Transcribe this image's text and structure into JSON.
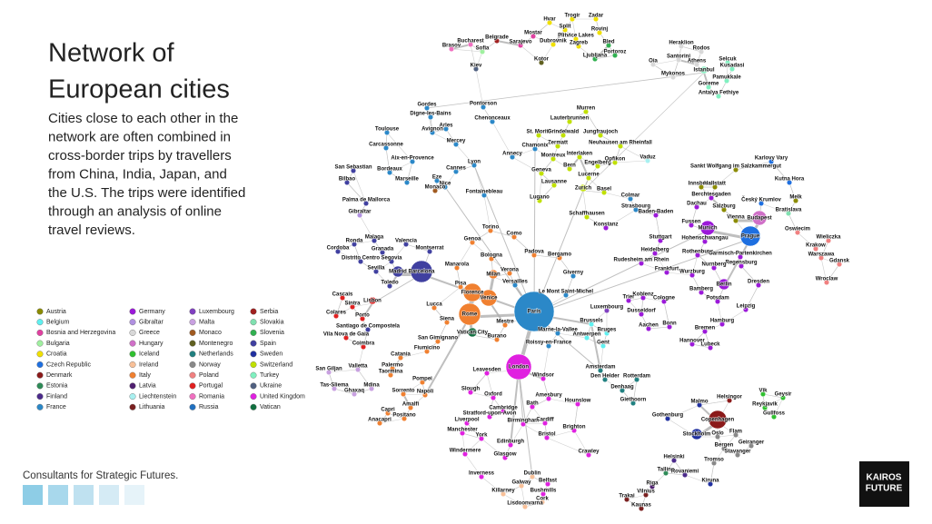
{
  "title_lines": [
    "Network of",
    "European cities"
  ],
  "description_lines": [
    "Cities close to each other in the",
    "network are often combined in",
    "cross-border trips by travellers",
    "from China, India, Japan, and",
    "the U.S. The trips were identified",
    "through an analysis of online",
    "travel reviews."
  ],
  "legend": [
    {
      "name": "Austria",
      "color": "#8b8b00"
    },
    {
      "name": "Belgium",
      "color": "#5ff0f0"
    },
    {
      "name": "Bosnia and Herzegovina",
      "color": "#e040a0"
    },
    {
      "name": "Bulgaria",
      "color": "#a0f0a0"
    },
    {
      "name": "Croatia",
      "color": "#f0e000"
    },
    {
      "name": "Czech Republic",
      "color": "#1e6fe0"
    },
    {
      "name": "Denmark",
      "color": "#8b1a1a"
    },
    {
      "name": "Estonia",
      "color": "#2e8b57"
    },
    {
      "name": "Finland",
      "color": "#4b2a8b"
    },
    {
      "name": "France",
      "color": "#2b88c8"
    },
    {
      "name": "Germany",
      "color": "#9b19d9"
    },
    {
      "name": "Gibraltar",
      "color": "#b090e0"
    },
    {
      "name": "Greece",
      "color": "#d8d8d8"
    },
    {
      "name": "Hungary",
      "color": "#d070c8"
    },
    {
      "name": "Iceland",
      "color": "#30c030"
    },
    {
      "name": "Ireland",
      "color": "#f8c098"
    },
    {
      "name": "Italy",
      "color": "#f08030"
    },
    {
      "name": "Latvia",
      "color": "#502070"
    },
    {
      "name": "Liechtenstein",
      "color": "#a8f0f0"
    },
    {
      "name": "Lithuania",
      "color": "#7a2020"
    },
    {
      "name": "Luxembourg",
      "color": "#8040c0"
    },
    {
      "name": "Malta",
      "color": "#c8a0e0"
    },
    {
      "name": "Monaco",
      "color": "#a05a20"
    },
    {
      "name": "Montenegro",
      "color": "#606020"
    },
    {
      "name": "Netherlands",
      "color": "#208080"
    },
    {
      "name": "Norway",
      "color": "#888888"
    },
    {
      "name": "Poland",
      "color": "#f08080"
    },
    {
      "name": "Portugal",
      "color": "#e02020"
    },
    {
      "name": "Romania",
      "color": "#f070c0"
    },
    {
      "name": "Russia",
      "color": "#2070c0"
    },
    {
      "name": "Serbia",
      "color": "#a02020"
    },
    {
      "name": "Slovakia",
      "color": "#80e0b0"
    },
    {
      "name": "Slovenia",
      "color": "#30b050"
    },
    {
      "name": "Spain",
      "color": "#4040a0"
    },
    {
      "name": "Sweden",
      "color": "#2030a0"
    },
    {
      "name": "Switzerland",
      "color": "#c0e000"
    },
    {
      "name": "Turkey",
      "color": "#80f0c0"
    },
    {
      "name": "Ukraine",
      "color": "#506080"
    },
    {
      "name": "United Kingdom",
      "color": "#e020e0"
    },
    {
      "name": "Vatican",
      "color": "#107040"
    }
  ],
  "nodes": [
    [
      "Trogir",
      "Croatia"
    ],
    [
      "Zadar",
      "Croatia"
    ],
    [
      "Hvar",
      "Croatia"
    ],
    [
      "Split",
      "Croatia"
    ],
    [
      "Rovinj",
      "Croatia"
    ],
    [
      "Mostar",
      "Bosnia and Herzegovina"
    ],
    [
      "Plitvice Lakes",
      "Croatia"
    ],
    [
      "Belgrade",
      "Serbia"
    ],
    [
      "Bucharest",
      "Romania"
    ],
    [
      "Sarajevo",
      "Bosnia and Herzegovina"
    ],
    [
      "Dubrovnik",
      "Croatia"
    ],
    [
      "Zagreb",
      "Croatia"
    ],
    [
      "Bled",
      "Slovenia"
    ],
    [
      "Brasov",
      "Romania"
    ],
    [
      "Sofia",
      "Bulgaria"
    ],
    [
      "Portoroz",
      "Slovenia"
    ],
    [
      "Kotor",
      "Montenegro"
    ],
    [
      "Ljubljana",
      "Slovenia"
    ],
    [
      "Kiev",
      "Ukraine"
    ],
    [
      "Heraklion",
      "Greece"
    ],
    [
      "Rodos",
      "Greece"
    ],
    [
      "Oia",
      "Greece"
    ],
    [
      "Santorini",
      "Greece"
    ],
    [
      "Athens",
      "Greece"
    ],
    [
      "Selcuk",
      "Turkey"
    ],
    [
      "Kusadasi",
      "Turkey"
    ],
    [
      "Istanbul",
      "Turkey"
    ],
    [
      "Mykonos",
      "Greece"
    ],
    [
      "Pamukkale",
      "Turkey"
    ],
    [
      "Goreme",
      "Turkey"
    ],
    [
      "Antalya Fethiye",
      "Turkey"
    ],
    [
      "Gordes",
      "France"
    ],
    [
      "Digne-les-Bains",
      "France"
    ],
    [
      "Pontorson",
      "France"
    ],
    [
      "Chenonceaux",
      "France"
    ],
    [
      "Arles",
      "France"
    ],
    [
      "Avignon",
      "France"
    ],
    [
      "Toulouse",
      "France"
    ],
    [
      "Mercey",
      "France"
    ],
    [
      "Carcassonne",
      "France"
    ],
    [
      "Aix-en-Provence",
      "France"
    ],
    [
      "Lyon",
      "France"
    ],
    [
      "Cannes",
      "France"
    ],
    [
      "San Sebastian",
      "Spain"
    ],
    [
      "Bordeaux",
      "France"
    ],
    [
      "Eze",
      "France"
    ],
    [
      "Marseille",
      "France"
    ],
    [
      "Nice",
      "France"
    ],
    [
      "Bilbao",
      "Spain"
    ],
    [
      "Monaco",
      "Monaco"
    ],
    [
      "Fontainebleau",
      "France"
    ],
    [
      "Murren",
      "Switzerland"
    ],
    [
      "Lauterbrunnen",
      "Switzerland"
    ],
    [
      "St. Moritz",
      "Switzerland"
    ],
    [
      "Grindelwald",
      "Switzerland"
    ],
    [
      "Jungfraujoch",
      "Switzerland"
    ],
    [
      "Zermatt",
      "Switzerland"
    ],
    [
      "Chamonix",
      "France"
    ],
    [
      "Montreux",
      "Switzerland"
    ],
    [
      "Annecy",
      "France"
    ],
    [
      "Interlaken",
      "Switzerland"
    ],
    [
      "Neuhausen am Rheinfall",
      "Switzerland"
    ],
    [
      "Bern",
      "Switzerland"
    ],
    [
      "Engelberg",
      "Switzerland"
    ],
    [
      "Lucerne",
      "Switzerland"
    ],
    [
      "Opfikon",
      "Switzerland"
    ],
    [
      "Vaduz",
      "Liechtenstein"
    ],
    [
      "Geneva",
      "Switzerland"
    ],
    [
      "Lausanne",
      "Switzerland"
    ],
    [
      "Zurich",
      "Switzerland"
    ],
    [
      "Basel",
      "Switzerland"
    ],
    [
      "Lugano",
      "Switzerland"
    ],
    [
      "Palma de Mallorca",
      "Spain"
    ],
    [
      "Gibraltar",
      "Gibraltar"
    ],
    [
      "Ronda",
      "Spain"
    ],
    [
      "Malaga",
      "Spain"
    ],
    [
      "Valencia",
      "Spain"
    ],
    [
      "Cordoba",
      "Spain"
    ],
    [
      "Granada",
      "Spain"
    ],
    [
      "Montserrat",
      "Spain"
    ],
    [
      "Distrito Centro",
      "Spain"
    ],
    [
      "Segovia",
      "Spain"
    ],
    [
      "Sevilla",
      "Spain"
    ],
    [
      "Madrid",
      "Spain"
    ],
    [
      "Barcelona",
      "Spain"
    ],
    [
      "Toledo",
      "Spain"
    ],
    [
      "Cascais",
      "Portugal"
    ],
    [
      "Sintra",
      "Portugal"
    ],
    [
      "Lisbon",
      "Portugal"
    ],
    [
      "Colares",
      "Portugal"
    ],
    [
      "Porto",
      "Portugal"
    ],
    [
      "Santiago de Compostela",
      "Spain"
    ],
    [
      "Vila Nova de Gaia",
      "Portugal"
    ],
    [
      "Coimbra",
      "Portugal"
    ],
    [
      "Torino",
      "Italy"
    ],
    [
      "Como",
      "Italy"
    ],
    [
      "Genoa",
      "Italy"
    ],
    [
      "Padova",
      "Italy"
    ],
    [
      "Bergamo",
      "Italy"
    ],
    [
      "Bologna",
      "Italy"
    ],
    [
      "Manarola",
      "Italy"
    ],
    [
      "Verona",
      "Italy"
    ],
    [
      "Milan",
      "Italy"
    ],
    [
      "Versailles",
      "France"
    ],
    [
      "Pisa",
      "Italy"
    ],
    [
      "Florence",
      "Italy"
    ],
    [
      "Venice",
      "Italy"
    ],
    [
      "Lucca",
      "Italy"
    ],
    [
      "Rome",
      "Italy"
    ],
    [
      "Siena",
      "Italy"
    ],
    [
      "Mestre",
      "Italy"
    ],
    [
      "Vatican City",
      "Vatican"
    ],
    [
      "Burano",
      "Italy"
    ],
    [
      "San Gimignano",
      "Italy"
    ],
    [
      "Fiumicino",
      "Italy"
    ],
    [
      "Catania",
      "Italy"
    ],
    [
      "Valletta",
      "Malta"
    ],
    [
      "San Giljan",
      "Malta"
    ],
    [
      "Palermo",
      "Italy"
    ],
    [
      "Taormina",
      "Italy"
    ],
    [
      "Pompei",
      "Italy"
    ],
    [
      "Mdina",
      "Malta"
    ],
    [
      "Tas-Sliema",
      "Malta"
    ],
    [
      "Ghaxaq",
      "Malta"
    ],
    [
      "Sorrento",
      "Italy"
    ],
    [
      "Napoli",
      "Italy"
    ],
    [
      "Amalfi",
      "Italy"
    ],
    [
      "Capri",
      "Italy"
    ],
    [
      "Positano",
      "Italy"
    ],
    [
      "Anacapri",
      "Italy"
    ],
    [
      "Giverny",
      "France"
    ],
    [
      "Le Mont Saint-Michel",
      "France"
    ],
    [
      "Paris",
      "France"
    ],
    [
      "Marne-la-Vallee",
      "France"
    ],
    [
      "Roissy-en-France",
      "France"
    ],
    [
      "Luxembourg",
      "Luxembourg"
    ],
    [
      "Brussels",
      "Belgium"
    ],
    [
      "Bruges",
      "Belgium"
    ],
    [
      "Antwerpen",
      "Belgium"
    ],
    [
      "Gent",
      "Belgium"
    ],
    [
      "Amsterdam",
      "Netherlands"
    ],
    [
      "Den Helder",
      "Netherlands"
    ],
    [
      "Rotterdam",
      "Netherlands"
    ],
    [
      "Denhaag",
      "Netherlands"
    ],
    [
      "Giethoorn",
      "Netherlands"
    ],
    [
      "London",
      "United Kingdom"
    ],
    [
      "Leavesden",
      "United Kingdom"
    ],
    [
      "Windsor",
      "United Kingdom"
    ],
    [
      "Slough",
      "United Kingdom"
    ],
    [
      "Oxford",
      "United Kingdom"
    ],
    [
      "Amesbury",
      "United Kingdom"
    ],
    [
      "Bath",
      "United Kingdom"
    ],
    [
      "Hounslow",
      "United Kingdom"
    ],
    [
      "Cambridge",
      "United Kingdom"
    ],
    [
      "Stratford-upon-Avon",
      "United Kingdom"
    ],
    [
      "Liverpool",
      "United Kingdom"
    ],
    [
      "Birmingham",
      "United Kingdom"
    ],
    [
      "Cardiff",
      "United Kingdom"
    ],
    [
      "Brighton",
      "United Kingdom"
    ],
    [
      "Manchester",
      "United Kingdom"
    ],
    [
      "York",
      "United Kingdom"
    ],
    [
      "Edinburgh",
      "United Kingdom"
    ],
    [
      "Bristol",
      "United Kingdom"
    ],
    [
      "Windermere",
      "United Kingdom"
    ],
    [
      "Glasgow",
      "United Kingdom"
    ],
    [
      "Crawley",
      "United Kingdom"
    ],
    [
      "Inverness",
      "United Kingdom"
    ],
    [
      "Dublin",
      "Ireland"
    ],
    [
      "Galway",
      "Ireland"
    ],
    [
      "Belfast",
      "United Kingdom"
    ],
    [
      "Killarney",
      "Ireland"
    ],
    [
      "Bushmills",
      "United Kingdom"
    ],
    [
      "Cork",
      "Ireland"
    ],
    [
      "Lisdoonvarna",
      "Ireland"
    ],
    [
      "Colmar",
      "France"
    ],
    [
      "Strasbourg",
      "France"
    ],
    [
      "Baden-Baden",
      "Germany"
    ],
    [
      "Schaffhausen",
      "Switzerland"
    ],
    [
      "Konstanz",
      "Germany"
    ],
    [
      "Innsbruck",
      "Austria"
    ],
    [
      "Hallstatt",
      "Austria"
    ],
    [
      "Sankt Wolfgang im Salzkammergut",
      "Austria"
    ],
    [
      "Berchtesgaden",
      "Germany"
    ],
    [
      "Dachau",
      "Germany"
    ],
    [
      "Salzburg",
      "Austria"
    ],
    [
      "Vienna",
      "Austria"
    ],
    [
      "Budapest",
      "Hungary"
    ],
    [
      "Český Krumlov",
      "Czech Republic"
    ],
    [
      "Kutna Hora",
      "Czech Republic"
    ],
    [
      "Karlovy Vary",
      "Czech Republic"
    ],
    [
      "Melk",
      "Austria"
    ],
    [
      "Bratislava",
      "Slovakia"
    ],
    [
      "Fussen",
      "Germany"
    ],
    [
      "Munich",
      "Germany"
    ],
    [
      "Prague",
      "Czech Republic"
    ],
    [
      "Oswiecim",
      "Poland"
    ],
    [
      "Wieliczka",
      "Poland"
    ],
    [
      "Krakow",
      "Poland"
    ],
    [
      "Warszawa",
      "Poland"
    ],
    [
      "Gdansk",
      "Poland"
    ],
    [
      "Wroclaw",
      "Poland"
    ],
    [
      "Stuttgart",
      "Germany"
    ],
    [
      "Hohenschwangau",
      "Germany"
    ],
    [
      "Heidelberg",
      "Germany"
    ],
    [
      "Rothenburg",
      "Germany"
    ],
    [
      "Garmisch-Partenkirchen",
      "Germany"
    ],
    [
      "Rudesheim am Rhein",
      "Germany"
    ],
    [
      "Regensburg",
      "Germany"
    ],
    [
      "Nurnberg",
      "Germany"
    ],
    [
      "Frankfurt",
      "Germany"
    ],
    [
      "Wurzburg",
      "Germany"
    ],
    [
      "Dresden",
      "Germany"
    ],
    [
      "Berlin",
      "Germany"
    ],
    [
      "Bamberg",
      "Germany"
    ],
    [
      "Koblenz",
      "Germany"
    ],
    [
      "Potsdam",
      "Germany"
    ],
    [
      "Trier",
      "Germany"
    ],
    [
      "Cologne",
      "Germany"
    ],
    [
      "Leipzig",
      "Germany"
    ],
    [
      "Dusseldorf",
      "Germany"
    ],
    [
      "Bonn",
      "Germany"
    ],
    [
      "Aachen",
      "Germany"
    ],
    [
      "Hamburg",
      "Germany"
    ],
    [
      "Bremen",
      "Germany"
    ],
    [
      "Hannover",
      "Germany"
    ],
    [
      "Lubeck",
      "Germany"
    ],
    [
      "Helsingor",
      "Denmark"
    ],
    [
      "Vik",
      "Iceland"
    ],
    [
      "Geysir",
      "Iceland"
    ],
    [
      "Malmo",
      "Sweden"
    ],
    [
      "Reykjavik",
      "Iceland"
    ],
    [
      "Gullfoss",
      "Iceland"
    ],
    [
      "Copenhagen",
      "Denmark"
    ],
    [
      "Gothenburg",
      "Sweden"
    ],
    [
      "Stockholm",
      "Sweden"
    ],
    [
      "Oslo",
      "Norway"
    ],
    [
      "Flam",
      "Norway"
    ],
    [
      "Geiranger",
      "Norway"
    ],
    [
      "Bergen",
      "Norway"
    ],
    [
      "Stavanger",
      "Norway"
    ],
    [
      "Tromso",
      "Norway"
    ],
    [
      "Helsinki",
      "Finland"
    ],
    [
      "Tallinn",
      "Estonia"
    ],
    [
      "Rovaniemi",
      "Finland"
    ],
    [
      "Kiruna",
      "Sweden"
    ],
    [
      "Riga",
      "Latvia"
    ],
    [
      "Vilnius",
      "Lithuania"
    ],
    [
      "Trakai",
      "Lithuania"
    ],
    [
      "Kaunas",
      "Lithuania"
    ]
  ],
  "footer": "Consultants for Strategic Futures.",
  "logo_lines": [
    "KAIROS",
    "FUTURE"
  ]
}
